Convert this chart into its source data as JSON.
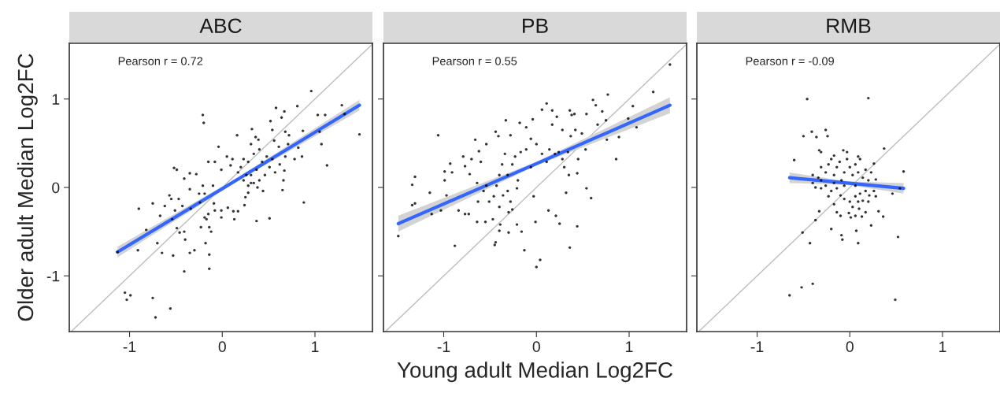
{
  "chart_data": [
    {
      "type": "scatter",
      "title": "ABC",
      "ylabel": "Older adult Median Log2FC",
      "annotations": [
        "Pearson r = 0.72"
      ],
      "xlim": [
        -1.65,
        1.62
      ],
      "ylim": [
        -1.63,
        1.63
      ],
      "xticks": [
        -1,
        0,
        1
      ],
      "yticks": [
        -1,
        0,
        1
      ],
      "grid": false,
      "legend": false,
      "series": [
        {
          "type": "line",
          "color": "#bebebe",
          "x": [
            -1.63,
            1.62
          ],
          "values": [
            -1.63,
            1.62
          ]
        },
        {
          "marker": "circle",
          "color": "#000000",
          "x": [
            0.96,
            1.29,
            1.32,
            1.48,
            1.03,
            1.11,
            0.81,
            0.58,
            0.67,
            0.64,
            0.52,
            0.54,
            0.32,
            0.68,
            0.72,
            0.87,
            1.05,
            1.07,
            1.13,
            0.88,
            0.65,
            0.51,
            0.37,
            0.16,
            0.36,
            0.39,
            0.31,
            0.56,
            0.61,
            0.71,
            0.78,
            0.86,
            0.82,
            0.68,
            -0.21,
            -0.2,
            -0.04,
            -0.52,
            -0.49,
            -0.35,
            -0.28,
            -0.41,
            -0.35,
            -0.21,
            -0.15,
            -0.08,
            -0.1,
            -0.57,
            -0.55,
            -0.47,
            -0.62,
            -0.75,
            -0.9,
            -0.67,
            -0.54,
            -0.51,
            -0.43,
            -0.34,
            -0.25,
            -0.19,
            -0.24,
            -0.09,
            -0.08,
            -0.01,
            0.06,
            0.12,
            0.17,
            -0.01,
            0.13,
            -0.19,
            -0.17,
            -0.15,
            -0.23,
            -0.14,
            -0.12,
            -0.49,
            -0.41,
            -0.46,
            -0.4,
            -0.82,
            -0.7,
            -0.91,
            -1.13,
            -0.65,
            -0.53,
            -0.35,
            -0.3,
            -0.18,
            -0.14,
            -0.14,
            -0.41,
            -1.05,
            -1.03,
            -0.99,
            -0.75,
            -0.56,
            -0.72,
            0.25,
            0.24,
            0.28,
            0.66,
            0.67,
            0.62,
            0.09,
            -0.01,
            0.05,
            0.11,
            0.2,
            0.23,
            0.28,
            0.34,
            0.37,
            0.31,
            0.26,
            0.34,
            0.4,
            0.46,
            0.51,
            0.43,
            0.48,
            0.31,
            0.28,
            0.38,
            0.44,
            0.23,
            0.17,
            0.4,
            0.54,
            0.57
          ],
          "values": [
            1.09,
            0.93,
            0.83,
            0.6,
            0.82,
            0.82,
            0.92,
            0.9,
            0.86,
            0.79,
            0.75,
            0.65,
            0.66,
            0.63,
            0.59,
            0.64,
            0.63,
            0.49,
            0.25,
            -0.17,
            -0.03,
            -0.35,
            -0.38,
            0.59,
            0.57,
            0.54,
            0.49,
            0.53,
            0.46,
            0.49,
            0.32,
            0.35,
            0.45,
            0.35,
            0.82,
            0.73,
            0.46,
            0.22,
            0.2,
            0.16,
            0.15,
            0.1,
            -0.02,
            0.02,
            0.29,
            0.29,
            0.02,
            -0.09,
            -0.13,
            -0.13,
            -0.21,
            -0.18,
            -0.24,
            -0.32,
            -0.36,
            -0.26,
            -0.21,
            -0.24,
            -0.07,
            -0.07,
            -0.17,
            -0.18,
            -0.26,
            -0.26,
            -0.23,
            -0.27,
            -0.27,
            -0.34,
            -0.36,
            -0.34,
            -0.36,
            -0.3,
            -0.45,
            -0.45,
            -0.5,
            -0.46,
            -0.5,
            -0.51,
            -0.59,
            -0.48,
            -0.63,
            -0.71,
            -0.73,
            -0.74,
            -0.77,
            -0.74,
            -0.71,
            -0.63,
            -0.76,
            -0.92,
            -0.95,
            -1.19,
            -1.27,
            -1.22,
            -1.25,
            -1.37,
            -1.47,
            -0.11,
            -0.2,
            -0.06,
            0.08,
            0.19,
            0.26,
            0.25,
            0.2,
            0.35,
            0.32,
            0.23,
            0.32,
            0.29,
            0.38,
            0.2,
            0.14,
            0.14,
            0.05,
            0.08,
            0.14,
            0.23,
            0.29,
            0.35,
            0.05,
            0.02,
            0.0,
            -0.04,
            0.08,
            0.17,
            0.43,
            0.32,
            0.17
          ]
        },
        {
          "type": "line",
          "color": "#3366ff",
          "x": [
            -1.13,
            0.18,
            1.48
          ],
          "values": [
            -0.73,
            0.1,
            0.93
          ],
          "lower": [
            -0.79,
            0.08,
            0.87
          ],
          "upper": [
            -0.67,
            0.12,
            0.99
          ]
        }
      ]
    },
    {
      "type": "scatter",
      "title": "PB",
      "xlabel": "Young adult Median Log2FC",
      "annotations": [
        "Pearson r = 0.55"
      ],
      "xlim": [
        -1.65,
        1.62
      ],
      "ylim": [
        -1.63,
        1.63
      ],
      "xticks": [
        -1,
        0,
        1
      ],
      "yticks": [
        -1,
        0,
        1
      ],
      "tick_labels": "x",
      "grid": false,
      "legend": false,
      "series": [
        {
          "type": "line",
          "color": "#bebebe",
          "x": [
            -1.63,
            1.62
          ],
          "values": [
            -1.63,
            1.62
          ]
        },
        {
          "marker": "circle",
          "color": "#000000",
          "x": [
            1.44,
            1.26,
            1.04,
            1.08,
            0.99,
            0.89,
            0.86,
            0.77,
            0.61,
            0.64,
            0.71,
            0.54,
            0.75,
            0.66,
            0.76,
            0.59,
            0.54,
            0.44,
            0.36,
            0.32,
            0.25,
            0.21,
            0.13,
            -0.01,
            -0.03,
            0.04,
            0.0,
            -0.13,
            -0.16,
            -0.21,
            -0.3,
            -0.4,
            -0.39,
            -0.44,
            -0.45,
            -0.88,
            -1.49,
            -1.34,
            -1.31,
            -1.13,
            -1.15,
            -1.34,
            -1.31,
            -1.06,
            -0.99,
            -0.99,
            -0.91,
            -0.93,
            -0.97,
            -1.03,
            -0.84,
            -0.77,
            -0.73,
            -0.79,
            -0.77,
            -0.72,
            -0.7,
            -0.62,
            -0.66,
            -0.6,
            -0.64,
            -0.64,
            -0.55,
            -0.47,
            -0.54,
            -0.44,
            -0.41,
            -0.33,
            -0.28,
            -0.18,
            -0.11,
            -0.04,
            0.06,
            0.11,
            0.17,
            0.22,
            0.36,
            0.38,
            0.41,
            0.17,
            0.28,
            0.42,
            0.37,
            0.49,
            0.53,
            0.45,
            0.44,
            0.35,
            0.3,
            -0.57,
            -0.54,
            -0.51,
            -0.46,
            -0.43,
            -0.4,
            -0.37,
            -0.34,
            -0.31,
            -0.28,
            -0.26,
            -0.31,
            -0.26,
            -0.23,
            -0.17,
            -0.11,
            -0.06,
            0.0,
            0.06,
            0.11,
            0.14,
            0.2,
            0.24,
            0.28,
            0.34,
            -0.06,
            -0.2,
            -0.4,
            -0.63,
            -0.36,
            -0.3,
            -0.21
          ],
          "values": [
            1.39,
            1.08,
            0.92,
            0.68,
            0.78,
            0.57,
            0.32,
            1.05,
            0.99,
            0.93,
            0.86,
            0.83,
            0.76,
            0.71,
            0.54,
            -0.12,
            -0.01,
            -0.44,
            -0.68,
            -0.06,
            -0.41,
            -0.32,
            -0.26,
            -0.39,
            -0.1,
            -0.82,
            -0.9,
            -0.71,
            -0.5,
            -0.42,
            -0.51,
            -0.49,
            -0.42,
            -0.62,
            -0.65,
            -0.66,
            -0.55,
            -0.2,
            -0.18,
            -0.3,
            -0.06,
            0.03,
            0.12,
            0.59,
            0.18,
            0.08,
            0.17,
            0.27,
            -0.09,
            -0.26,
            -0.26,
            -0.3,
            -0.3,
            0.35,
            0.24,
            0.15,
            0.32,
            0.41,
            0.54,
            0.29,
            0.05,
            -0.39,
            -0.39,
            -0.36,
            0.49,
            0.63,
            0.58,
            0.76,
            0.59,
            0.73,
            0.68,
            0.77,
            0.88,
            0.95,
            0.87,
            0.8,
            0.87,
            0.82,
            0.83,
            0.71,
            0.65,
            0.65,
            0.58,
            0.61,
            0.43,
            0.32,
            0.16,
            0.14,
            0.23,
            -0.04,
            0.02,
            -0.16,
            -0.1,
            0.02,
            0.14,
            0.26,
            0.38,
            -0.04,
            -0.16,
            -0.25,
            0.14,
            0.26,
            0.35,
            0.4,
            0.43,
            0.55,
            0.49,
            0.38,
            0.29,
            0.43,
            0.38,
            0.4,
            0.32,
            0.4,
            0.23,
            0.08,
            -0.22,
            -0.16,
            -0.09,
            -0.28,
            -0.01
          ]
        },
        {
          "type": "line",
          "color": "#3366ff",
          "x": [
            -1.49,
            -0.02,
            1.44
          ],
          "values": [
            -0.41,
            0.26,
            0.93
          ],
          "lower": [
            -0.5,
            0.24,
            0.84
          ],
          "upper": [
            -0.32,
            0.28,
            1.02
          ]
        }
      ]
    },
    {
      "type": "scatter",
      "title": "RMB",
      "annotations": [
        "Pearson r = -0.09"
      ],
      "xlim": [
        -1.65,
        1.62
      ],
      "ylim": [
        -1.63,
        1.63
      ],
      "xticks": [
        -1,
        0,
        1
      ],
      "yticks": [
        -1,
        0,
        1
      ],
      "tick_labels": "x",
      "grid": false,
      "legend": false,
      "series": [
        {
          "type": "line",
          "color": "#bebebe",
          "x": [
            -1.63,
            1.62
          ],
          "values": [
            -1.63,
            1.62
          ]
        },
        {
          "marker": "circle",
          "color": "#000000",
          "x": [
            -0.46,
            0.2,
            -0.5,
            -0.41,
            -0.36,
            -0.26,
            -0.24,
            0.37,
            -0.6,
            -0.33,
            -0.31,
            0.58,
            0.54,
            0.46,
            -0.33,
            -0.37,
            -0.51,
            -0.43,
            -0.2,
            -0.09,
            -0.08,
            0.07,
            0.09,
            0.23,
            0.36,
            0.31,
            0.52,
            -0.65,
            -0.52,
            -0.4,
            0.49,
            -0.14,
            -0.1,
            -0.01,
            0.01,
            0.06,
            0.1,
            0.17,
            0.13,
            0.26,
            0.09,
            -0.07,
            -0.03,
            -0.17,
            -0.4,
            -0.34,
            -0.31,
            -0.26,
            -0.23,
            -0.2,
            -0.17,
            -0.14,
            -0.11,
            -0.09,
            -0.06,
            -0.03,
            0.0,
            0.03,
            0.06,
            0.09,
            0.11,
            0.14,
            0.17,
            0.2,
            0.23,
            0.28,
            -0.37,
            -0.31,
            -0.26,
            -0.2,
            -0.14,
            -0.1,
            -0.06,
            0.0,
            0.06,
            0.11,
            0.17,
            0.21,
            0.26,
            -0.23,
            -0.17,
            0.03,
            0.09,
            0.14,
            0.2,
            0.28,
            -0.4,
            -0.31,
            0.06,
            -0.06,
            -0.17
          ],
          "values": [
            1.0,
            1.01,
            0.58,
            0.63,
            0.57,
            0.65,
            0.58,
            0.44,
            0.31,
            0.42,
            0.4,
            0.18,
            -0.01,
            -0.07,
            -0.27,
            -0.37,
            -0.51,
            -0.63,
            -0.47,
            -0.54,
            -0.59,
            -0.49,
            -0.63,
            -0.43,
            -0.33,
            -0.27,
            -0.56,
            -1.22,
            -1.13,
            -1.09,
            -1.27,
            -0.28,
            -0.32,
            -0.29,
            -0.34,
            -0.32,
            -0.24,
            -0.28,
            -0.33,
            0.27,
            0.35,
            0.42,
            0.4,
            0.36,
            0.05,
            0.11,
            0.23,
            0.17,
            0.26,
            0.32,
            0.14,
            0.23,
            0.29,
            0.08,
            0.17,
            0.32,
            0.23,
            0.14,
            0.26,
            0.17,
            0.32,
            0.11,
            0.2,
            0.08,
            0.17,
            0.09,
            0.0,
            -0.01,
            0.02,
            -0.04,
            -0.01,
            -0.09,
            -0.13,
            -0.16,
            -0.1,
            -0.07,
            -0.04,
            -0.09,
            -0.04,
            -0.1,
            -0.19,
            -0.22,
            -0.16,
            -0.15,
            -0.16,
            -0.1,
            0.14,
            0.08,
            0.02,
            0.02,
            0.05
          ]
        },
        {
          "type": "line",
          "color": "#3366ff",
          "x": [
            -0.65,
            -0.03,
            0.58
          ],
          "values": [
            0.11,
            0.05,
            -0.01
          ],
          "lower": [
            0.05,
            0.03,
            -0.07
          ],
          "upper": [
            0.17,
            0.07,
            0.05
          ]
        }
      ]
    }
  ]
}
